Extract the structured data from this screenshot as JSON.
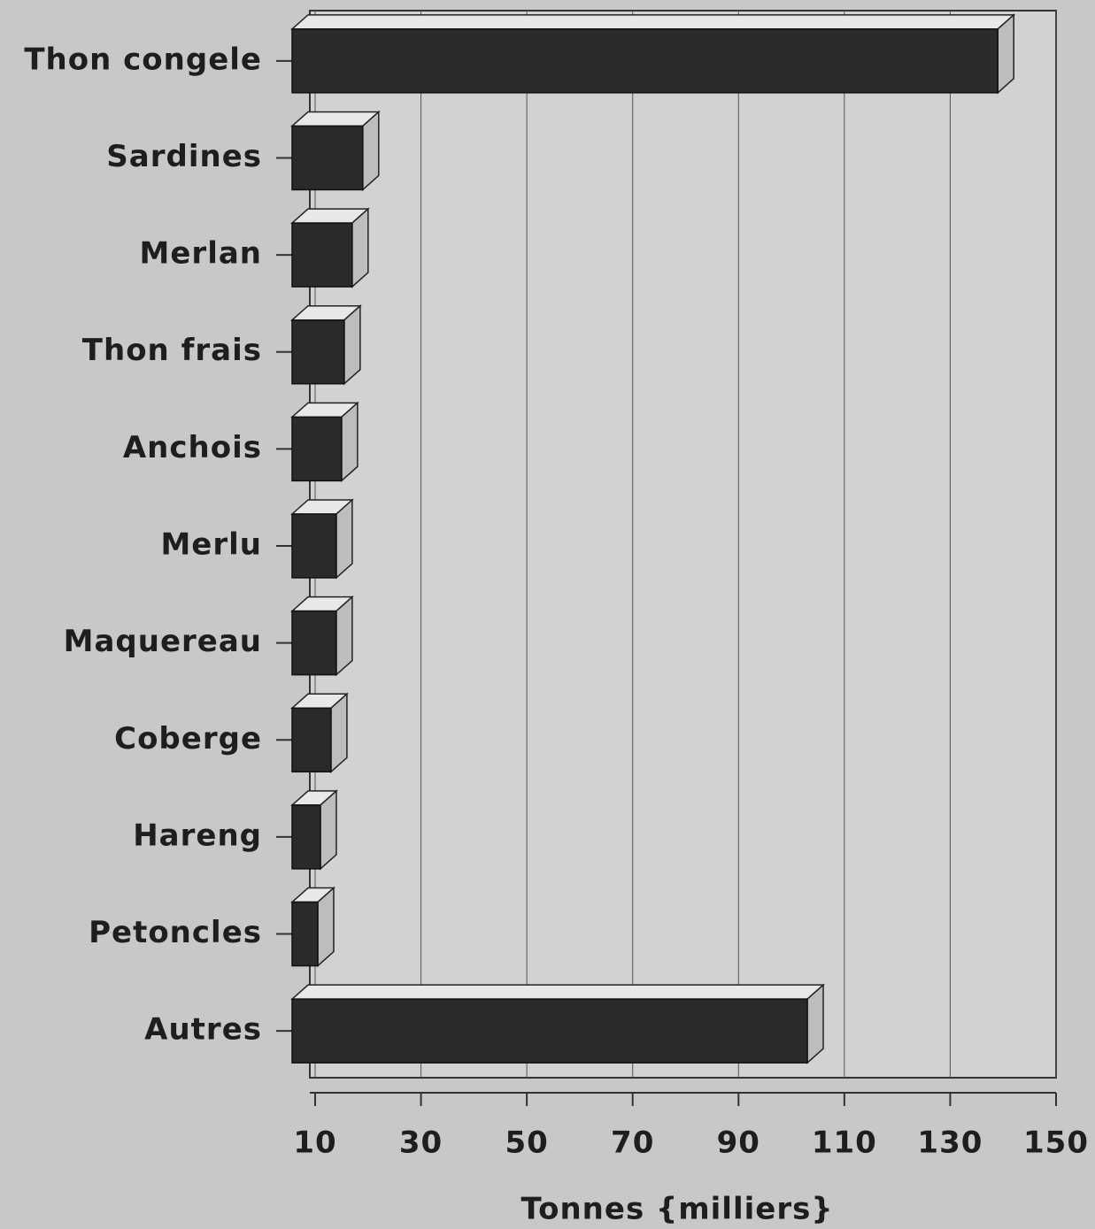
{
  "chart_data": {
    "type": "bar",
    "orientation": "horizontal",
    "x_label": "Tonnes {milliers}",
    "categories": [
      "Thon congele",
      "Sardines",
      "Merlan",
      "Thon frais",
      "Anchois",
      "Merlu",
      "Maquereau",
      "Coberge",
      "Hareng",
      "Petoncles",
      "Autres"
    ],
    "values": [
      139,
      19,
      17,
      15.5,
      15,
      14,
      14,
      13,
      11,
      10.5,
      103
    ],
    "color": "#2a2a2a",
    "xlim": [
      9,
      150
    ],
    "xticks": [
      10,
      30,
      50,
      70,
      90,
      110,
      130,
      150
    ],
    "grid": true
  }
}
